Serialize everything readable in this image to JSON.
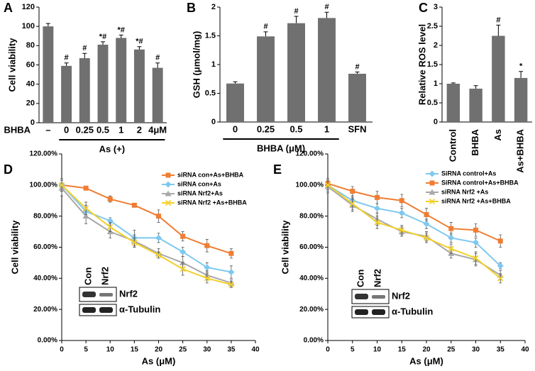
{
  "chart_data": [
    {
      "type": "bar",
      "panel": "A",
      "ylabel": "Cell viability",
      "row_label": "BHBA",
      "categories": [
        "–",
        "0",
        "0.25",
        "0.5",
        "1",
        "2",
        "4μM"
      ],
      "values": [
        100,
        59,
        67,
        81,
        88,
        76,
        57
      ],
      "errors": [
        3,
        3,
        5,
        3,
        3,
        3,
        5
      ],
      "annotations": [
        null,
        "#",
        "#",
        "*#",
        "*#",
        "*#",
        "#"
      ],
      "group_label": "As (+)",
      "color": "#707070",
      "ylim": [
        0,
        120
      ],
      "yticks": [
        0,
        20,
        40,
        60,
        80,
        100,
        120
      ]
    },
    {
      "type": "bar",
      "panel": "B",
      "ylabel": "GSH (μmol/mg)",
      "categories": [
        "0",
        "0.25",
        "0.5",
        "1",
        "SFN"
      ],
      "values": [
        0.67,
        1.49,
        1.72,
        1.81,
        0.84
      ],
      "errors": [
        0.03,
        0.08,
        0.12,
        0.1,
        0.03
      ],
      "annotations": [
        null,
        "#",
        "#",
        "#",
        "#"
      ],
      "group_label": "BHBA (μM)",
      "color": "#707070",
      "ylim": [
        0,
        2
      ],
      "yticks": [
        0,
        0.5,
        1,
        1.5,
        2
      ]
    },
    {
      "type": "bar",
      "panel": "C",
      "ylabel": "Relative ROS level",
      "categories": [
        "Control",
        "BHBA",
        "As",
        "As+BHBA"
      ],
      "values": [
        1.0,
        0.87,
        2.25,
        1.15
      ],
      "errors": [
        0.02,
        0.08,
        0.28,
        0.17
      ],
      "annotations": [
        null,
        null,
        "#",
        "*"
      ],
      "color": "#707070",
      "ylim": [
        0,
        3
      ],
      "yticks": [
        0,
        0.5,
        1,
        1.5,
        2,
        2.5,
        3
      ]
    },
    {
      "type": "line",
      "panel": "D",
      "ylabel": "Cell viability",
      "xlabel": "As (μM)",
      "x": [
        0,
        5,
        10,
        15,
        20,
        25,
        30,
        35
      ],
      "series": [
        {
          "name": "siRNA con+As+BHBA",
          "color": "#f07d33",
          "marker": "square",
          "values": [
            100,
            98,
            91,
            87,
            80,
            67,
            61,
            56
          ],
          "errors": [
            3,
            1,
            2,
            1,
            4,
            3,
            4,
            3
          ]
        },
        {
          "name": "siRNA con+As",
          "color": "#7ec8ef",
          "marker": "diamond",
          "values": [
            100,
            83,
            77,
            66,
            66,
            57,
            47,
            44
          ],
          "errors": [
            4,
            4,
            2,
            5,
            3,
            3,
            3,
            4
          ]
        },
        {
          "name": "siRNA Nrf2+As",
          "color": "#a8a8a8",
          "marker": "triangle",
          "values": [
            98,
            80,
            70,
            64,
            56,
            50,
            42,
            37
          ],
          "errors": [
            5,
            5,
            4,
            4,
            3,
            4,
            3,
            2
          ]
        },
        {
          "name": "siRNA Nrf2 +As+BHBA",
          "color": "#f2d02c",
          "marker": "x",
          "values": [
            100,
            85,
            73,
            63,
            55,
            46,
            40,
            36
          ],
          "errors": [
            4,
            4,
            3,
            3,
            2,
            4,
            3,
            2
          ]
        }
      ],
      "inset": {
        "columns": [
          "Con",
          "Nrf2"
        ],
        "rows": [
          "Nrf2",
          "α-Tubulin"
        ]
      },
      "xlim": [
        0,
        40
      ],
      "xticks": [
        0,
        5,
        10,
        15,
        20,
        25,
        30,
        35,
        40
      ],
      "ylim": [
        0,
        120
      ],
      "yticks": [
        {
          "value": 0,
          "label": "0.00%"
        },
        {
          "value": 20,
          "label": "20.00%"
        },
        {
          "value": 40,
          "label": "40.00%"
        },
        {
          "value": 60,
          "label": "60.00%"
        },
        {
          "value": 80,
          "label": "80.00%"
        },
        {
          "value": 100,
          "label": "100.00%"
        },
        {
          "value": 120,
          "label": "120.00%"
        }
      ]
    },
    {
      "type": "line",
      "panel": "E",
      "ylabel": "Cell viability",
      "xlabel": "As (μM)",
      "x": [
        0,
        5,
        10,
        15,
        20,
        25,
        30,
        35
      ],
      "series": [
        {
          "name": "SiRNA control+As",
          "color": "#7ec8ef",
          "marker": "diamond",
          "values": [
            100,
            90,
            85,
            82,
            75,
            66,
            63,
            48
          ],
          "errors": [
            3,
            3,
            3,
            3,
            3,
            3,
            3,
            2
          ]
        },
        {
          "name": "SiRNA control+As+BHBA",
          "color": "#f07d33",
          "marker": "square",
          "values": [
            101,
            96,
            92,
            90,
            81,
            72,
            71,
            64
          ],
          "errors": [
            3,
            3,
            4,
            4,
            4,
            4,
            4,
            4
          ]
        },
        {
          "name": "siRNA Nrf2 +As",
          "color": "#a8a8a8",
          "marker": "triangle",
          "values": [
            99,
            87,
            78,
            70,
            67,
            56,
            52,
            42
          ],
          "errors": [
            4,
            4,
            4,
            3,
            3,
            3,
            4,
            3
          ]
        },
        {
          "name": "siRNA Nrf2 +As+BHBA",
          "color": "#f2d02c",
          "marker": "x",
          "values": [
            100,
            88,
            76,
            71,
            66,
            59,
            53,
            40
          ],
          "errors": [
            4,
            4,
            4,
            3,
            3,
            3,
            4,
            3
          ]
        }
      ],
      "inset": {
        "columns": [
          "Con",
          "Nrf2"
        ],
        "rows": [
          "Nrf2",
          "α-Tubulin"
        ]
      },
      "xlim": [
        0,
        40
      ],
      "xticks": [
        0,
        5,
        10,
        15,
        20,
        25,
        30,
        35,
        40
      ],
      "ylim": [
        0,
        120
      ],
      "yticks": [
        {
          "value": 0,
          "label": "0.00%"
        },
        {
          "value": 20,
          "label": "20.00%"
        },
        {
          "value": 40,
          "label": "40.00%"
        },
        {
          "value": 60,
          "label": "60.00%"
        },
        {
          "value": 80,
          "label": "80.00%"
        },
        {
          "value": 100,
          "label": "100.00%"
        },
        {
          "value": 120,
          "label": "120.00%"
        }
      ]
    }
  ]
}
